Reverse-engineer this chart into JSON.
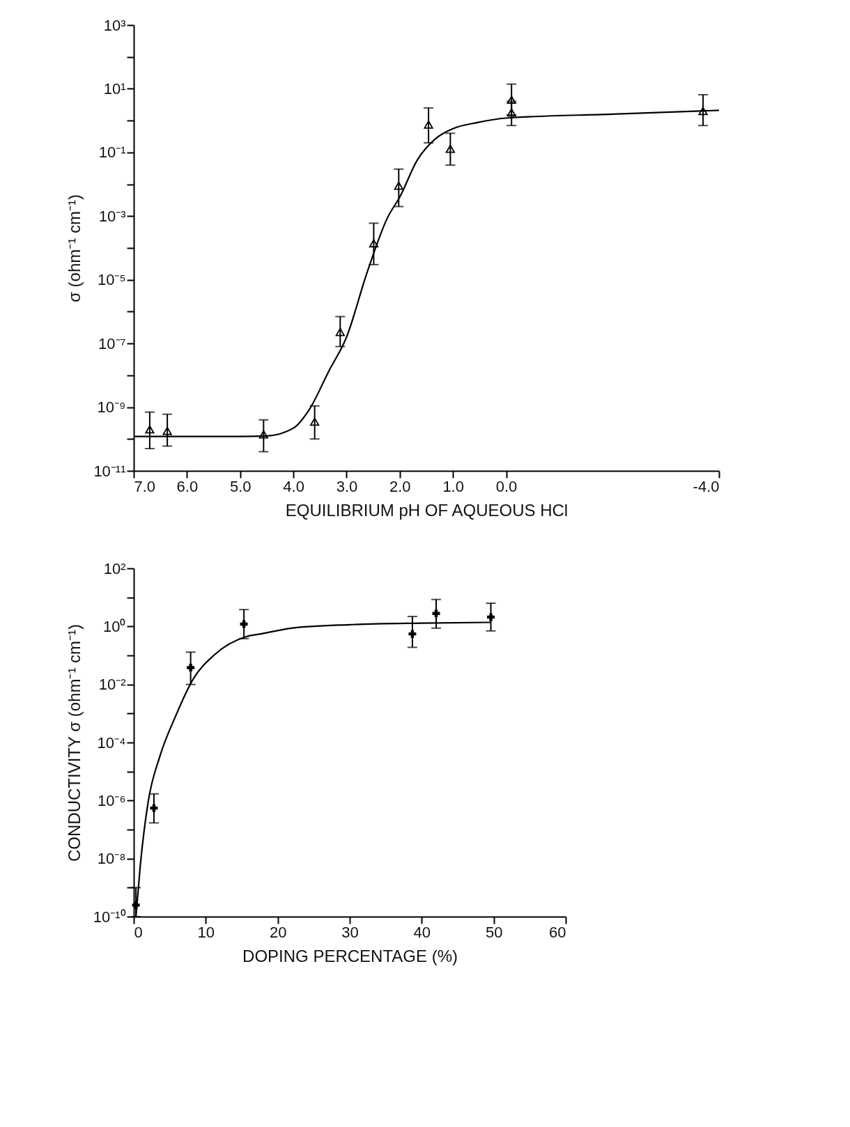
{
  "chart_data": [
    {
      "type": "scatter",
      "xlabel": "EQUILIBRIUM pH OF AQUEOUS HCl",
      "ylabel": "σ (ohm⁻¹ cm⁻¹)",
      "log": "y",
      "xlim": [
        7.0,
        -4.0
      ],
      "xticks": [
        {
          "value": 7,
          "label": "7.0"
        },
        {
          "value": 6,
          "label": "6.0"
        },
        {
          "value": 5,
          "label": "5.0"
        },
        {
          "value": 4,
          "label": "4.0"
        },
        {
          "value": 3,
          "label": "3.0"
        },
        {
          "value": 2,
          "label": "2.0"
        },
        {
          "value": 1,
          "label": "1.0"
        },
        {
          "value": 0,
          "label": "0.0"
        },
        {
          "value": -4,
          "label": "-4.0"
        }
      ],
      "ylim": [
        1e-11,
        1000
      ],
      "yticks": [
        {
          "value": 1000,
          "label": "10³"
        },
        {
          "value": 100,
          "label": null
        },
        {
          "value": 10,
          "label": "10¹"
        },
        {
          "value": 1,
          "label": null
        },
        {
          "value": 0.1,
          "label": "10⁻¹"
        },
        {
          "value": 0.01,
          "label": null
        },
        {
          "value": 0.001,
          "label": "10⁻³"
        },
        {
          "value": 0.0001,
          "label": null
        },
        {
          "value": 1e-05,
          "label": "10⁻⁵"
        },
        {
          "value": 1e-06,
          "label": null
        },
        {
          "value": 1e-07,
          "label": "10⁻⁷"
        },
        {
          "value": 1e-08,
          "label": null
        },
        {
          "value": 1e-09,
          "label": "10⁻⁹"
        },
        {
          "value": 1e-10,
          "label": null
        },
        {
          "value": 1e-11,
          "label": "10⁻¹¹"
        }
      ],
      "series": [
        {
          "type": "scatter",
          "color": "#000000",
          "marker": "triangle",
          "x": [
            6.7,
            6.37,
            4.56,
            3.6,
            3.12,
            2.49,
            2.02,
            1.46,
            1.05,
            -0.1,
            -0.1,
            -3.7
          ],
          "values": [
            2e-10,
            1.8e-10,
            1.4e-10,
            3.5e-10,
            2.3e-07,
            0.00014,
            0.009,
            0.75,
            0.13,
            4.5,
            1.8,
            2
          ],
          "errors": [
            [
              5e-11,
              7e-10
            ],
            [
              6e-11,
              6e-10
            ],
            [
              4e-11,
              4e-10
            ],
            [
              1e-10,
              1.1e-09
            ],
            [
              8e-08,
              7e-07
            ],
            [
              3e-05,
              0.0006
            ],
            [
              0.002,
              0.03
            ],
            [
              0.2,
              2.5
            ],
            [
              0.04,
              0.4
            ],
            [
              1.5,
              14
            ],
            [
              0.7,
              4
            ],
            [
              0.7,
              6.5
            ]
          ]
        },
        {
          "type": "line",
          "color": "#000000",
          "x": [
            7.0,
            6.0,
            5.0,
            4.5,
            4.0,
            3.7,
            3.33,
            3.0,
            2.62,
            2.23,
            2.0,
            1.67,
            1.34,
            1.0,
            0.54,
            0.0,
            -2.0,
            -4.0
          ],
          "values": [
            1.2e-10,
            1.2e-10,
            1.2e-10,
            1.25e-10,
            2.2e-10,
            8.5e-10,
            1.4e-08,
            1.6e-07,
            1.6e-05,
            0.0009,
            0.004,
            0.058,
            0.26,
            0.56,
            0.87,
            1.2,
            1.6,
            2.1
          ]
        }
      ]
    },
    {
      "type": "scatter",
      "xlabel": "DOPING PERCENTAGE (%)",
      "ylabel": "CONDUCTIVITY σ (ohm⁻¹ cm⁻¹)",
      "log": "y",
      "xlim": [
        0,
        60
      ],
      "xticks": [
        0,
        10,
        20,
        30,
        40,
        50,
        60
      ],
      "ylim": [
        1e-10,
        100
      ],
      "yticks": [
        {
          "value": 100,
          "label": "10²"
        },
        {
          "value": 10,
          "label": null
        },
        {
          "value": 1,
          "label": "10⁰"
        },
        {
          "value": 0.1,
          "label": null
        },
        {
          "value": 0.01,
          "label": "10⁻²"
        },
        {
          "value": 0.001,
          "label": null
        },
        {
          "value": 0.0001,
          "label": "10⁻⁴"
        },
        {
          "value": 1e-05,
          "label": null
        },
        {
          "value": 1e-06,
          "label": "10⁻⁶"
        },
        {
          "value": 1e-07,
          "label": null
        },
        {
          "value": 1e-08,
          "label": "10⁻⁸"
        },
        {
          "value": 1e-09,
          "label": null
        },
        {
          "value": 1e-10,
          "label": "10⁻¹⁰"
        }
      ],
      "series": [
        {
          "type": "scatter",
          "color": "#000000",
          "marker": "cross",
          "x": [
            0.3,
            2.8,
            7.9,
            15.3,
            38.7,
            42.0,
            49.6
          ],
          "values": [
            2.5e-10,
            5.5e-07,
            0.038,
            1.2,
            0.55,
            2.8,
            2.1
          ],
          "errors": [
            [
              1e-10,
              1e-09
            ],
            [
              1.7e-07,
              1.7e-06
            ],
            [
              0.01,
              0.13
            ],
            [
              0.38,
              3.8
            ],
            [
              0.19,
              2.2
            ],
            [
              0.87,
              8.5
            ],
            [
              0.7,
              6.3
            ]
          ]
        },
        {
          "type": "line",
          "color": "#000000",
          "x": [
            0.3,
            0.9,
            2.0,
            3.6,
            5.8,
            8.3,
            11.1,
            15.7,
            17.6,
            21.9,
            30,
            40,
            49.6
          ],
          "values": [
            1e-10,
            5.6e-09,
            9e-07,
            3.2e-05,
            0.0008,
            0.016,
            0.1,
            0.45,
            0.55,
            0.87,
            1.15,
            1.3,
            1.38
          ]
        }
      ]
    }
  ]
}
